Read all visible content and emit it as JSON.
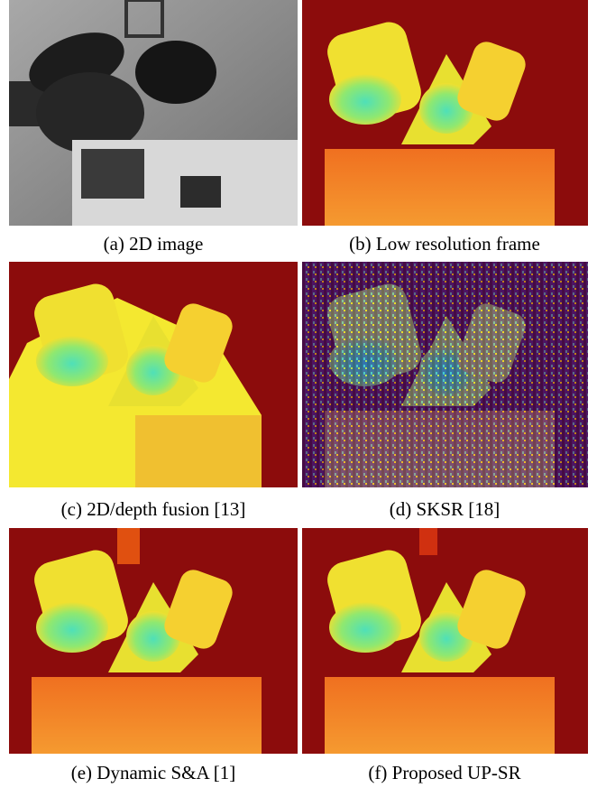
{
  "panels": [
    {
      "caption": "(a) 2D image"
    },
    {
      "caption": "(b) Low resolution frame"
    },
    {
      "caption": "(c) 2D/depth fusion [13]"
    },
    {
      "caption": "(d) SKSR [18]"
    },
    {
      "caption": "(e) Dynamic S&A  [1]"
    },
    {
      "caption": "(f) Proposed UP-SR"
    }
  ]
}
